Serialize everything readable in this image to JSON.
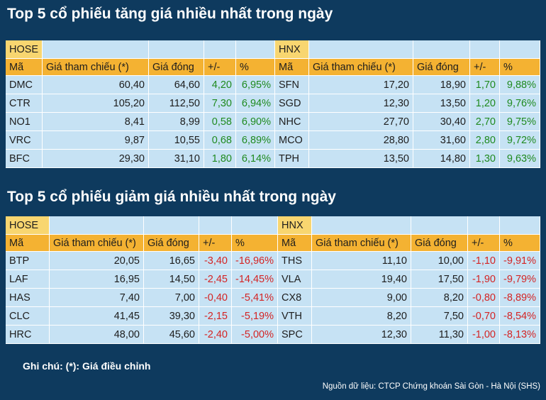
{
  "sections": [
    {
      "title": "Top 5 cổ phiếu tăng giá nhiều nhất trong ngày",
      "change_color": "#1f8a1f",
      "tables": [
        {
          "exchange": "HOSE",
          "headers": [
            "Mã",
            "Giá tham chiếu (*)",
            "Giá đóng",
            "+/-",
            "%"
          ],
          "rows": [
            [
              "DMC",
              "60,40",
              "64,60",
              "4,20",
              "6,95%"
            ],
            [
              "CTR",
              "105,20",
              "112,50",
              "7,30",
              "6,94%"
            ],
            [
              "NO1",
              "8,41",
              "8,99",
              "0,58",
              "6,90%"
            ],
            [
              "VRC",
              "9,87",
              "10,55",
              "0,68",
              "6,89%"
            ],
            [
              "BFC",
              "29,30",
              "31,10",
              "1,80",
              "6,14%"
            ]
          ]
        },
        {
          "exchange": "HNX",
          "headers": [
            "Mã",
            "Giá tham chiếu (*)",
            "Giá đóng",
            "+/-",
            "%"
          ],
          "rows": [
            [
              "SFN",
              "17,20",
              "18,90",
              "1,70",
              "9,88%"
            ],
            [
              "SGD",
              "12,30",
              "13,50",
              "1,20",
              "9,76%"
            ],
            [
              "NHC",
              "27,70",
              "30,40",
              "2,70",
              "9,75%"
            ],
            [
              "MCO",
              "28,80",
              "31,60",
              "2,80",
              "9,72%"
            ],
            [
              "TPH",
              "13,50",
              "14,80",
              "1,30",
              "9,63%"
            ]
          ]
        }
      ]
    },
    {
      "title": "Top 5 cổ phiếu giảm giá nhiều nhất trong ngày",
      "change_color": "#d42424",
      "tables": [
        {
          "exchange": "HOSE",
          "headers": [
            "Mã",
            "Giá tham chiếu (*)",
            "Giá đóng",
            "+/-",
            "%"
          ],
          "rows": [
            [
              "BTP",
              "20,05",
              "16,65",
              "-3,40",
              "-16,96%"
            ],
            [
              "LAF",
              "16,95",
              "14,50",
              "-2,45",
              "-14,45%"
            ],
            [
              "HAS",
              "7,40",
              "7,00",
              "-0,40",
              "-5,41%"
            ],
            [
              "CLC",
              "41,45",
              "39,30",
              "-2,15",
              "-5,19%"
            ],
            [
              "HRC",
              "48,00",
              "45,60",
              "-2,40",
              "-5,00%"
            ]
          ]
        },
        {
          "exchange": "HNX",
          "headers": [
            "Mã",
            "Giá tham chiếu (*)",
            "Giá đóng",
            "+/-",
            "%"
          ],
          "rows": [
            [
              "THS",
              "11,10",
              "10,00",
              "-1,10",
              "-9,91%"
            ],
            [
              "VLA",
              "19,40",
              "17,50",
              "-1,90",
              "-9,79%"
            ],
            [
              "CX8",
              "9,00",
              "8,20",
              "-0,80",
              "-8,89%"
            ],
            [
              "VTH",
              "8,20",
              "7,50",
              "-0,70",
              "-8,54%"
            ],
            [
              "SPC",
              "12,30",
              "11,30",
              "-1,00",
              "-8,13%"
            ]
          ]
        }
      ]
    }
  ],
  "note": "Ghi chú: (*): Giá điều chỉnh",
  "source": "Nguồn dữ liệu: CTCP Chứng khoán Sài Gòn - Hà Nội (SHS)"
}
